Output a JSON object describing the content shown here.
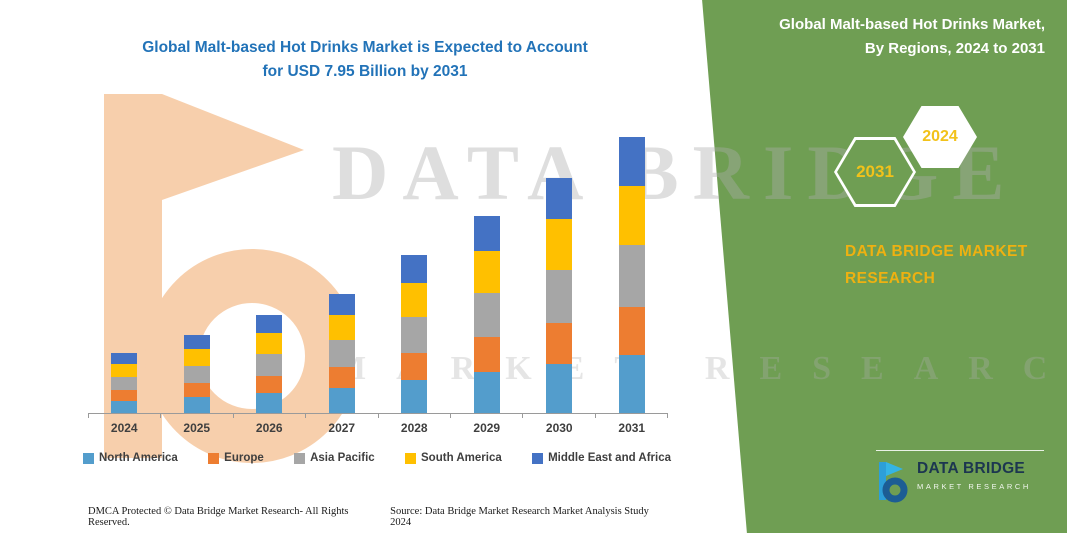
{
  "title": {
    "line1": "Global Malt-based Hot Drinks Market is Expected to Account",
    "line2": "for USD 7.95 Billion by 2031"
  },
  "side_panel": {
    "heading1": "Global Malt-based Hot Drinks Market,",
    "heading2": "By Regions, 2024 to 2031",
    "badge_back": "2031",
    "badge_front": "2024",
    "brand1": "DATA BRIDGE MARKET",
    "brand2": "RESEARCH",
    "colors": {
      "panel_green": "#6f9e53",
      "badge_yellow": "#f2c21a",
      "brand_yellow": "#eeb111"
    }
  },
  "watermark": {
    "main": "DATA BRIDGE",
    "sub": "MARKET RESEARCH"
  },
  "logo": {
    "name": "DATA BRIDGE",
    "sub": "MARKET RESEARCH"
  },
  "footer": {
    "left": "DMCA Protected © Data Bridge Market Research-  All Rights Reserved.",
    "source": "Source: Data Bridge Market Research  Market Analysis Study 2024"
  },
  "chart_data": {
    "type": "bar",
    "stacked": true,
    "title": "Global Malt-based Hot Drinks Market is Expected to Account for USD 7.95 Billion by 2031",
    "unit": "USD Billion",
    "categories": [
      "2024",
      "2025",
      "2026",
      "2027",
      "2028",
      "2029",
      "2030",
      "2031"
    ],
    "series": [
      {
        "name": "North America",
        "color": "#539dcc",
        "values": [
          0.36,
          0.47,
          0.59,
          0.72,
          0.95,
          1.19,
          1.42,
          1.67
        ]
      },
      {
        "name": "Europe",
        "color": "#ed7d31",
        "values": [
          0.3,
          0.39,
          0.49,
          0.6,
          0.79,
          0.99,
          1.18,
          1.38
        ]
      },
      {
        "name": "Asia Pacific",
        "color": "#a6a6a6",
        "values": [
          0.38,
          0.5,
          0.63,
          0.77,
          1.02,
          1.28,
          1.52,
          1.79
        ]
      },
      {
        "name": "South America",
        "color": "#ffc000",
        "values": [
          0.37,
          0.48,
          0.6,
          0.73,
          0.97,
          1.21,
          1.45,
          1.7
        ]
      },
      {
        "name": "Middle East and Africa",
        "color": "#4472c4",
        "values": [
          0.31,
          0.4,
          0.5,
          0.6,
          0.81,
          1.01,
          1.2,
          1.41
        ]
      }
    ],
    "totals": [
      1.72,
      2.24,
      2.81,
      3.42,
      4.54,
      5.68,
      6.77,
      7.95
    ],
    "xlabel": "",
    "ylabel": "",
    "ylim": [
      0,
      9
    ],
    "gridlines": false,
    "axis_labels_visible": false,
    "legend_position": "bottom"
  }
}
